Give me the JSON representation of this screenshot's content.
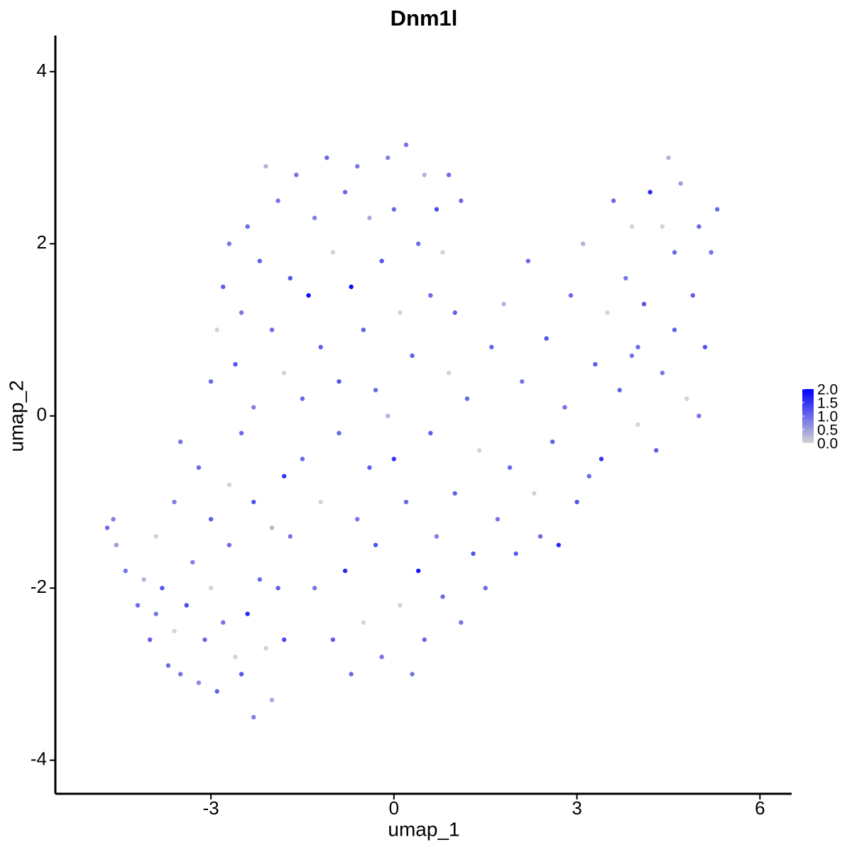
{
  "chart_data": {
    "type": "scatter",
    "title": "Dnm1l",
    "x_label": "umap_1",
    "y_label": "umap_2",
    "xlim": [
      -5.55,
      6.52
    ],
    "ylim": [
      -4.39,
      4.42
    ],
    "xticks": [
      -3,
      0,
      3,
      6
    ],
    "yticks": [
      -4,
      -2,
      0,
      2,
      4
    ],
    "x": [
      -4.7,
      -4.6,
      -4.55,
      -4.4,
      -4.2,
      -4.1,
      -4.0,
      -3.9,
      -3.8,
      -3.7,
      -3.6,
      -3.5,
      -3.4,
      -3.3,
      -3.2,
      -3.1,
      -3.0,
      -2.9,
      -2.8,
      -2.7,
      -2.6,
      -2.5,
      -2.4,
      -2.3,
      -2.2,
      -2.1,
      -2.0,
      -1.9,
      -1.8,
      -1.7,
      -3.9,
      -3.6,
      -3.2,
      -3.5,
      -3.0,
      -2.7,
      -2.5,
      -2.3,
      -2.0,
      -1.8,
      -3.0,
      -2.9,
      -2.8,
      -2.7,
      -2.6,
      -2.5,
      -2.4,
      -2.3,
      -2.2,
      -2.1,
      -2.0,
      -1.9,
      -1.8,
      -1.7,
      -1.6,
      -1.5,
      -1.4,
      -1.3,
      -1.2,
      -1.1,
      -1.0,
      -0.9,
      -0.8,
      -0.7,
      -0.6,
      -0.5,
      -0.4,
      -0.3,
      -0.2,
      -0.1,
      0.0,
      0.1,
      0.2,
      0.3,
      0.4,
      0.5,
      0.6,
      0.7,
      0.8,
      0.9,
      1.0,
      1.1,
      -1.5,
      -1.3,
      -1.2,
      -1.0,
      -0.9,
      -0.8,
      -0.7,
      -0.6,
      -0.5,
      -0.4,
      -0.3,
      -0.2,
      -0.1,
      0.0,
      0.1,
      0.2,
      0.3,
      0.4,
      0.5,
      0.6,
      0.7,
      0.8,
      0.9,
      1.0,
      1.1,
      1.2,
      1.3,
      1.4,
      1.5,
      1.6,
      1.7,
      1.8,
      1.9,
      2.0,
      2.1,
      2.2,
      2.3,
      2.4,
      2.5,
      2.6,
      2.7,
      2.8,
      2.9,
      3.0,
      3.1,
      3.2,
      3.3,
      3.4,
      3.5,
      3.6,
      3.7,
      3.8,
      3.9,
      4.0,
      4.1,
      4.2,
      4.3,
      4.4,
      4.5,
      4.6,
      4.7,
      4.8,
      4.9,
      5.0,
      5.1,
      5.2,
      5.3,
      4.6,
      4.0,
      3.9,
      4.4,
      5.0
    ],
    "y": [
      -1.3,
      -1.2,
      -1.5,
      -1.8,
      -2.2,
      -1.9,
      -2.6,
      -2.3,
      -2.0,
      -2.9,
      -2.5,
      -3.0,
      -2.2,
      -1.7,
      -3.1,
      -2.6,
      -2.0,
      -3.2,
      -2.4,
      -1.5,
      -2.8,
      -3.0,
      -2.3,
      -3.5,
      -1.9,
      -2.7,
      -3.3,
      -2.0,
      -2.6,
      -1.4,
      -1.4,
      -1.0,
      -0.6,
      -0.3,
      -1.2,
      -0.8,
      -0.2,
      -1.0,
      -1.3,
      -0.7,
      0.4,
      1.0,
      1.5,
      2.0,
      0.6,
      1.2,
      2.2,
      0.1,
      1.8,
      2.9,
      1.0,
      2.5,
      0.5,
      1.6,
      2.8,
      0.2,
      1.4,
      2.3,
      0.8,
      3.0,
      1.9,
      0.4,
      2.6,
      1.5,
      2.9,
      1.0,
      2.3,
      0.3,
      1.8,
      3.0,
      2.4,
      1.2,
      3.15,
      0.7,
      2.0,
      2.8,
      1.4,
      2.4,
      1.9,
      2.8,
      1.2,
      2.5,
      -0.5,
      -2.0,
      -1.0,
      -2.6,
      -0.2,
      -1.8,
      -3.0,
      -1.2,
      -2.4,
      -0.6,
      -1.5,
      -2.8,
      0.0,
      -0.5,
      -2.2,
      -1.0,
      -3.0,
      -1.8,
      -2.6,
      -0.2,
      -1.4,
      -2.1,
      0.5,
      -0.9,
      -2.4,
      0.2,
      -1.6,
      -0.4,
      -2.0,
      0.8,
      -1.2,
      1.3,
      -0.6,
      -1.6,
      0.4,
      1.8,
      -0.9,
      -1.4,
      0.9,
      -0.3,
      -1.5,
      0.1,
      1.4,
      -1.0,
      2.0,
      -0.7,
      0.6,
      -0.5,
      1.2,
      2.5,
      0.3,
      1.6,
      2.2,
      0.8,
      1.3,
      2.6,
      -0.4,
      0.5,
      3.0,
      1.9,
      2.7,
      0.2,
      1.4,
      2.2,
      0.8,
      1.9,
      2.4,
      1.0,
      -0.1,
      0.7,
      2.2,
      0.0
    ],
    "values": [
      1.0,
      0.8,
      0.5,
      0.9,
      1.0,
      0.3,
      1.1,
      0.9,
      1.2,
      1.0,
      0.0,
      0.9,
      1.3,
      0.8,
      0.7,
      1.0,
      0.0,
      1.1,
      0.9,
      1.0,
      0.0,
      1.2,
      1.6,
      0.8,
      1.0,
      0.0,
      0.4,
      1.1,
      1.3,
      0.9,
      0.0,
      0.8,
      1.0,
      0.9,
      1.1,
      0.0,
      1.0,
      1.2,
      0.3,
      1.5,
      1.0,
      0.0,
      1.1,
      0.9,
      1.2,
      0.9,
      1.0,
      0.8,
      1.1,
      0.3,
      1.0,
      0.9,
      0.0,
      1.2,
      0.9,
      1.0,
      1.9,
      0.8,
      1.1,
      1.0,
      0.0,
      1.2,
      1.0,
      1.9,
      0.9,
      1.1,
      0.4,
      1.0,
      1.2,
      0.8,
      1.0,
      0.0,
      0.9,
      1.1,
      1.0,
      0.3,
      1.0,
      1.3,
      0.0,
      1.0,
      1.1,
      1.0,
      1.0,
      0.9,
      0.0,
      1.1,
      1.0,
      1.6,
      1.0,
      0.9,
      0.0,
      1.1,
      1.2,
      0.9,
      0.3,
      1.5,
      0.0,
      1.0,
      0.9,
      1.8,
      1.0,
      1.1,
      0.8,
      1.0,
      0.0,
      1.1,
      0.9,
      1.0,
      1.2,
      0.0,
      1.0,
      1.1,
      0.9,
      0.3,
      1.0,
      1.1,
      0.9,
      1.0,
      0.0,
      1.0,
      1.2,
      1.1,
      1.6,
      0.9,
      1.0,
      1.2,
      0.3,
      1.0,
      1.1,
      1.5,
      0.0,
      1.0,
      1.1,
      0.9,
      0.0,
      1.0,
      1.2,
      1.6,
      1.1,
      0.9,
      0.3,
      1.0,
      0.5,
      0.0,
      1.1,
      1.0,
      1.2,
      0.9,
      1.0,
      1.1,
      0.0,
      0.9,
      0.0,
      0.9
    ],
    "colorbar": {
      "lim": [
        0,
        2
      ],
      "ticks": [
        {
          "value": 0,
          "label": "0.0"
        },
        0.5,
        {
          "value": 1,
          "label": "1.0"
        },
        1.5,
        {
          "value": 2,
          "label": "2.0"
        }
      ],
      "low": "#d3d3d3",
      "high": "#0000ff"
    }
  }
}
